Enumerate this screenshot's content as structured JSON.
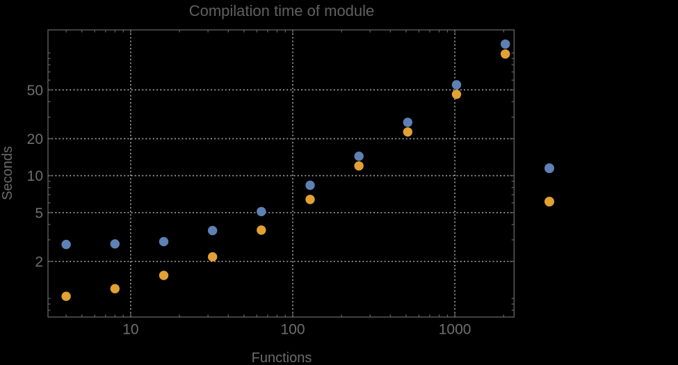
{
  "colors": {
    "background": "#000000",
    "frame": "#646464",
    "grid": "#9c9c9c",
    "tick_label": "#6e6e6e",
    "title": "#606060",
    "axis_label": "#6b6b6b",
    "series_blue": "#5e81b5",
    "series_orange": "#e2a134"
  },
  "chart_data": {
    "type": "scatter",
    "title": "Compilation time of module",
    "xlabel": "Functions",
    "ylabel": "Seconds",
    "xscale": "log",
    "yscale": "log",
    "xlim": [
      3.09,
      2320
    ],
    "ylim": [
      0.705,
      154
    ],
    "grid": "dotted",
    "x": [
      4,
      8,
      16,
      32,
      64,
      128,
      256,
      512,
      1024,
      2048
    ],
    "series": [
      {
        "name": "blue",
        "color": "#5e81b5",
        "values": [
          2.75,
          2.78,
          2.9,
          3.57,
          5.1,
          8.35,
          14.4,
          27.2,
          55,
          118
        ]
      },
      {
        "name": "orange",
        "color": "#e2a134",
        "values": [
          1.04,
          1.2,
          1.54,
          2.18,
          3.6,
          6.4,
          12,
          22.7,
          46,
          98
        ]
      }
    ],
    "x_major_ticks": [
      {
        "value": 10,
        "label": "10"
      },
      {
        "value": 100,
        "label": "100"
      },
      {
        "value": 1000,
        "label": "1000"
      }
    ],
    "y_major_ticks": [
      {
        "value": 2,
        "label": "2"
      },
      {
        "value": 5,
        "label": "5"
      },
      {
        "value": 10,
        "label": "10"
      },
      {
        "value": 20,
        "label": "20"
      },
      {
        "value": 50,
        "label": "50"
      }
    ],
    "legend": {
      "position": "right-outside",
      "labels_visible": false,
      "markers": [
        {
          "series": "blue",
          "color": "#5e81b5"
        },
        {
          "series": "orange",
          "color": "#e2a134"
        }
      ]
    }
  }
}
